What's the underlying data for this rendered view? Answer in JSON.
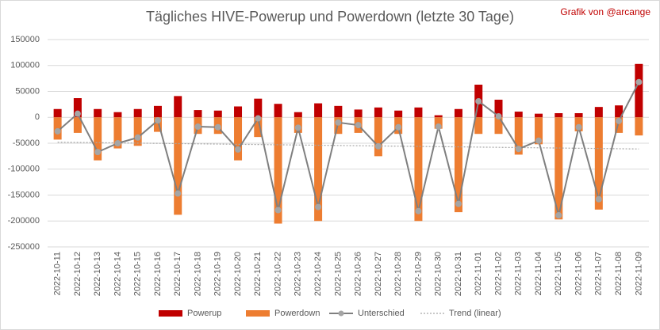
{
  "chart_data": {
    "type": "bar",
    "title": "Tägliches HIVE-Powerup und Powerdown (letzte 30 Tage)",
    "annotation": "Grafik von @arcange",
    "categories": [
      "2022-10-11",
      "2022-10-12",
      "2022-10-13",
      "2022-10-14",
      "2022-10-15",
      "2022-10-16",
      "2022-10-17",
      "2022-10-18",
      "2022-10-19",
      "2022-10-20",
      "2022-10-21",
      "2022-10-22",
      "2022-10-23",
      "2022-10-24",
      "2022-10-25",
      "2022-10-26",
      "2022-10-27",
      "2022-10-28",
      "2022-10-29",
      "2022-10-30",
      "2022-10-31",
      "2022-11-01",
      "2022-11-02",
      "2022-11-03",
      "2022-11-04",
      "2022-11-05",
      "2022-11-06",
      "2022-11-07",
      "2022-11-08",
      "2022-11-09"
    ],
    "series": [
      {
        "name": "Powerup",
        "color": "#c00000",
        "kind": "bar",
        "values": [
          16000,
          37000,
          16000,
          10000,
          16000,
          22000,
          41000,
          14000,
          13000,
          21000,
          36000,
          26000,
          10000,
          27000,
          22000,
          15000,
          19000,
          13000,
          19000,
          4000,
          16000,
          63000,
          34000,
          11000,
          7000,
          8000,
          8000,
          20000,
          23000,
          103000
        ]
      },
      {
        "name": "Powerdown",
        "color": "#ed7d31",
        "kind": "bar",
        "values": [
          -43000,
          -30000,
          -83000,
          -60000,
          -55000,
          -28000,
          -188000,
          -32000,
          -32000,
          -83000,
          -38000,
          -205000,
          -30000,
          -200000,
          -32000,
          -30000,
          -75000,
          -32000,
          -200000,
          -22000,
          -183000,
          -32000,
          -32000,
          -72000,
          -52000,
          -197000,
          -27000,
          -178000,
          -30000,
          -35000
        ]
      },
      {
        "name": "Unterschied",
        "color": "#7f7f7f",
        "kind": "line",
        "values": [
          -27000,
          7000,
          -67000,
          -50000,
          -39000,
          -6000,
          -147000,
          -18000,
          -19000,
          -62000,
          -2000,
          -179000,
          -20000,
          -173000,
          -10000,
          -15000,
          -56000,
          -19000,
          -181000,
          -18000,
          -167000,
          31000,
          2000,
          -61000,
          -45000,
          -189000,
          -19000,
          -158000,
          -7000,
          68000
        ]
      },
      {
        "name": "Trend (linear)",
        "color": "#a6a6a6",
        "kind": "trend",
        "values": [
          -48000,
          -48450,
          -48900,
          -49350,
          -49800,
          -50250,
          -50700,
          -51150,
          -51600,
          -52050,
          -52500,
          -52950,
          -53400,
          -53850,
          -54300,
          -54750,
          -55200,
          -55650,
          -56100,
          -56550,
          -57000,
          -57450,
          -57900,
          -58350,
          -58800,
          -59250,
          -59700,
          -60150,
          -60600,
          -61050
        ]
      }
    ],
    "ylim": [
      -250000,
      150000
    ],
    "yticks": [
      -250000,
      -200000,
      -150000,
      -100000,
      -50000,
      0,
      50000,
      100000,
      150000
    ],
    "grid": true
  }
}
